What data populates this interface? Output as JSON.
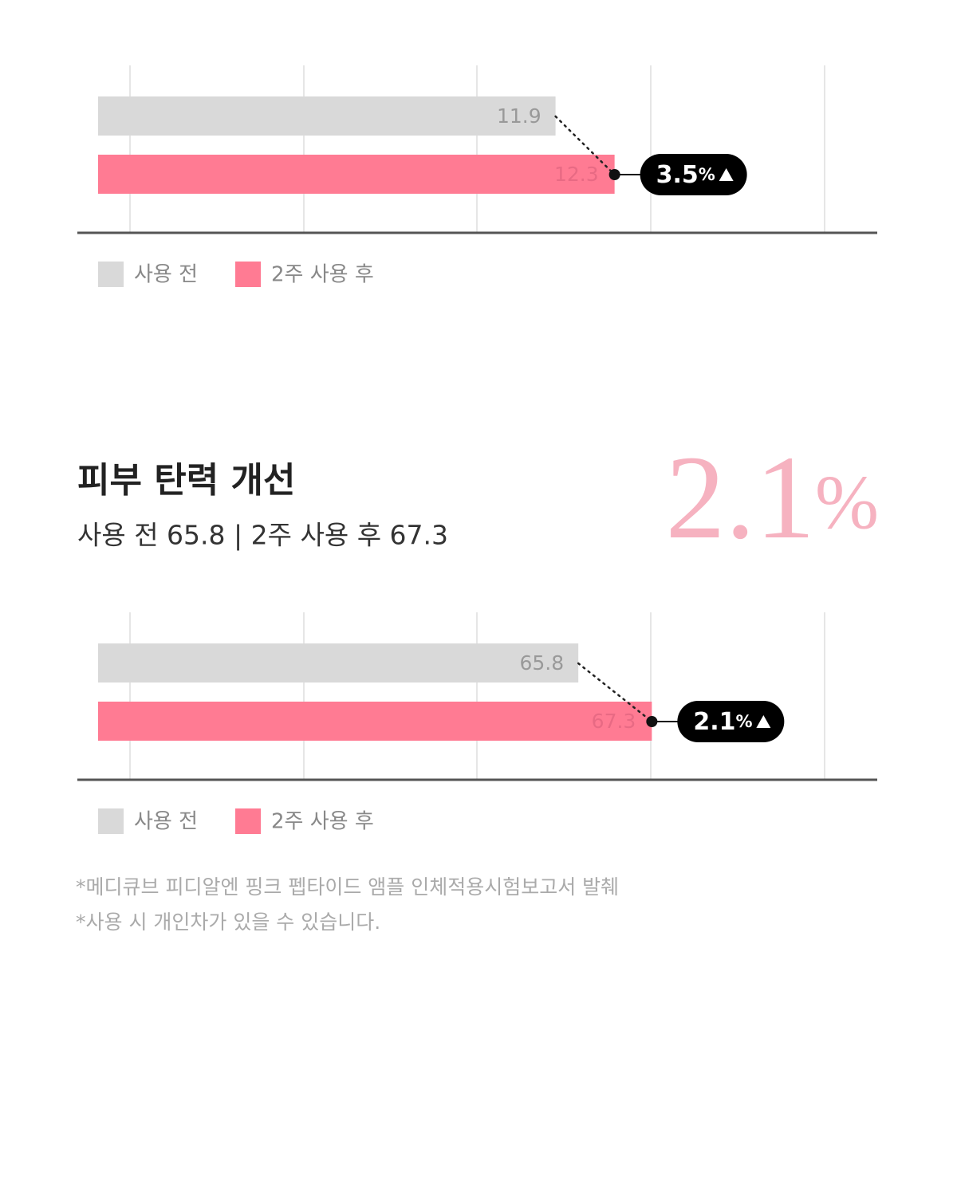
{
  "chart_data": [
    {
      "type": "bar",
      "orientation": "horizontal",
      "xlim": [
        8.8,
        14.08
      ],
      "series": [
        {
          "name": "사용 전",
          "color": "#d9d9d9",
          "values": [
            11.9
          ]
        },
        {
          "name": "2주 사용 후",
          "color": "#ff7b93",
          "values": [
            12.3
          ]
        }
      ],
      "change": 3.5,
      "change_unit": "%"
    },
    {
      "type": "bar",
      "orientation": "horizontal",
      "xlim": [
        56,
        71.9
      ],
      "series": [
        {
          "name": "사용 전",
          "color": "#d9d9d9",
          "values": [
            65.8
          ]
        },
        {
          "name": "2주 사용 후",
          "color": "#ff7b93",
          "values": [
            67.3
          ]
        }
      ],
      "change": 2.1,
      "change_unit": "%"
    }
  ],
  "section": {
    "title": "피부 탄력 개선",
    "subtitle": "사용 전 65.8 | 2주 사용 후 67.3",
    "big_value": "2.1",
    "big_unit": "%"
  },
  "footnotes": [
    "*메디큐브 피디알엔 핑크 펩타이드 앰플 인체적용시험보고서 발췌",
    "*사용 시 개인차가 있을 수 있습니다."
  ]
}
